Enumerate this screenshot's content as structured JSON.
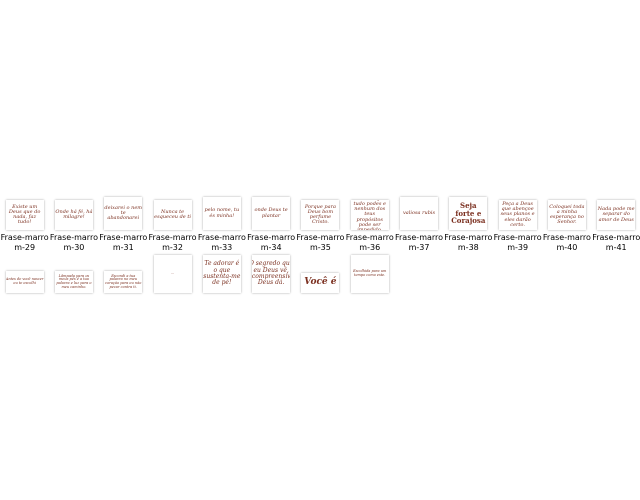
{
  "accent_color": "#7a2e1e",
  "row1": [
    {
      "label1": "Frase-marro",
      "label2": "m-29",
      "text": "Existe um Deus que do nada, faz tudo!"
    },
    {
      "label1": "Frase-marro",
      "label2": "m-30",
      "text": "Onde há fé, há milagre!"
    },
    {
      "label1": "Frase-marro",
      "label2": "m-31",
      "text": "deixarei o nem te abandonarei"
    },
    {
      "label1": "Frase-marro",
      "label2": "m-32",
      "text": "Nunca te esqueceu de ti"
    },
    {
      "label1": "Frase-marro",
      "label2": "m-33",
      "text": "pelo nome, tu és minha!"
    },
    {
      "label1": "Frase-marro",
      "label2": "m-34",
      "text": "onde Deus te plantar"
    },
    {
      "label1": "Frase-marro",
      "label2": "m-35",
      "text": "Porque para Deus bom perfume Cristo."
    },
    {
      "label1": "Frase-marro",
      "label2": "m-36",
      "text": "Bem sei que tudo podes e nenhum dos teus propósitos pode ser impedido."
    },
    {
      "label1": "Frase-marro",
      "label2": "m-37",
      "text": "valiosa rubis"
    },
    {
      "label1": "Frase-marro",
      "label2": "m-38",
      "text": "Seja forte e Corajosa"
    },
    {
      "label1": "Frase-marro",
      "label2": "m-39",
      "text": "Peça a Deus que abençoe seus planos e eles darão certo."
    },
    {
      "label1": "Frase-marro",
      "label2": "m-40",
      "text": "Coloquei toda a minha esperança no Senhor."
    },
    {
      "label1": "Frase-marro",
      "label2": "m-41",
      "text": "Nada pode me separar do amor de Deus"
    }
  ],
  "row2": [
    {
      "text": "Antes de você nascer eu te escolhi"
    },
    {
      "text": "Lâmpada para os meus pés é a tua palavra e luz para o meu caminho."
    },
    {
      "text": "Escondi a tua palavra no meu coração para eu não pecar contra ti."
    },
    {
      "text": "..."
    },
    {
      "text": "Te adorar é o que sustenta-me de pé!"
    },
    {
      "text": "O segredo que eu Deus vê, incompreensível Deus dá."
    },
    {
      "text": "Você é"
    },
    {
      "text": "Escolhida para um tempo como este."
    }
  ]
}
